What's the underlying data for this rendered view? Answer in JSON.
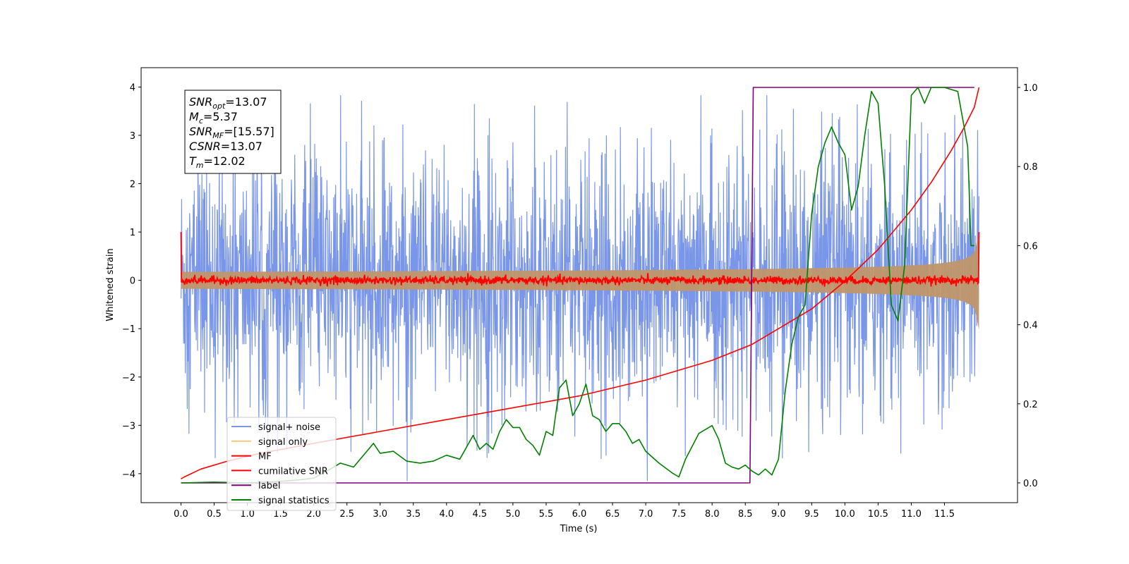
{
  "chart_data": {
    "type": "line",
    "xlabel": "Time (s)",
    "ylabel": "Whitened strain",
    "xlim": [
      -0.6,
      12.6
    ],
    "ylim": [
      -4.6,
      4.4
    ],
    "y2lim": [
      -0.05,
      1.05
    ],
    "x_ticks": [
      "0.0",
      "0.5",
      "1.0",
      "1.5",
      "2.0",
      "2.5",
      "3.0",
      "3.5",
      "4.0",
      "4.5",
      "5.0",
      "5.5",
      "6.0",
      "6.5",
      "7.0",
      "7.5",
      "8.0",
      "8.5",
      "9.0",
      "9.5",
      "10.0",
      "10.5",
      "11.0",
      "11.5"
    ],
    "y_ticks": [
      "4",
      "3",
      "2",
      "1",
      "0",
      "−1",
      "−2",
      "−3",
      "−4"
    ],
    "y2_ticks": [
      "1.0",
      "0.8",
      "0.6",
      "0.4",
      "0.2",
      "0.0"
    ],
    "info_box": [
      {
        "sym": "SNR",
        "sub": "opt",
        "val": "=13.07"
      },
      {
        "sym": "M",
        "sub": "c",
        "val": "=5.37"
      },
      {
        "sym": "SNR",
        "sub": "MF",
        "val": "=[15.57]"
      },
      {
        "sym": "CSNR",
        "sub": "",
        "val": "=13.07"
      },
      {
        "sym": "T",
        "sub": "m",
        "val": "=12.02"
      }
    ],
    "legend": {
      "placement": "lower-left",
      "entries": [
        {
          "label": "signal+ noise",
          "color": "#7a96e8"
        },
        {
          "label": "signal only",
          "color": "#f5c77e"
        },
        {
          "label": "MF",
          "color": "#ff0000"
        },
        {
          "label": "cumilative SNR",
          "color": "#ff0000"
        },
        {
          "label": "label",
          "color": "#800080"
        },
        {
          "label": "signal statistics",
          "color": "#008000"
        }
      ]
    },
    "series": [
      {
        "name": "signal+ noise",
        "axis": "left",
        "color": "#7a96e8",
        "t_start": 0.0,
        "t_end": 12.02,
        "typical_envelope": [
          -2.2,
          2.2
        ],
        "max": 3.83,
        "min": -4.15
      },
      {
        "name": "signal only",
        "axis": "left",
        "color": "#c0966a",
        "t_start": 0.0,
        "t_end": 12.02,
        "amplitude_start": 0.02,
        "amplitude_end": 1.0
      },
      {
        "name": "MF",
        "axis": "left",
        "color": "#ff0000",
        "t_start": 0.0,
        "t_end": 12.02,
        "noise_amplitude": 0.07,
        "edge_values": [
          1.0,
          1.0
        ]
      },
      {
        "name": "cumilative SNR",
        "axis": "right",
        "color": "#ff0000",
        "x": [
          0.0,
          0.05,
          0.3,
          0.7,
          1.2,
          2.0,
          3.0,
          4.0,
          5.0,
          6.0,
          7.0,
          8.0,
          8.6,
          9.0,
          9.5,
          10.0,
          10.5,
          11.0,
          11.3,
          11.6,
          11.8,
          11.95,
          12.02
        ],
        "y": [
          0.01,
          0.015,
          0.035,
          0.055,
          0.075,
          0.1,
          0.13,
          0.16,
          0.19,
          0.22,
          0.26,
          0.31,
          0.35,
          0.39,
          0.44,
          0.51,
          0.59,
          0.69,
          0.76,
          0.84,
          0.9,
          0.95,
          1.0
        ]
      },
      {
        "name": "label",
        "axis": "right",
        "color": "#800080",
        "x": [
          0.0,
          8.57,
          8.62,
          11.95
        ],
        "y": [
          0.0,
          0.0,
          1.0,
          1.0
        ]
      },
      {
        "name": "signal statistics",
        "axis": "right",
        "color": "#008000",
        "x": [
          0.0,
          0.5,
          1.0,
          1.5,
          1.8,
          2.0,
          2.2,
          2.4,
          2.6,
          2.8,
          2.9,
          3.0,
          3.2,
          3.4,
          3.6,
          3.8,
          4.0,
          4.2,
          4.4,
          4.5,
          4.6,
          4.7,
          4.8,
          4.9,
          5.0,
          5.1,
          5.2,
          5.3,
          5.4,
          5.5,
          5.6,
          5.7,
          5.8,
          5.9,
          6.0,
          6.1,
          6.2,
          6.3,
          6.4,
          6.5,
          6.6,
          6.7,
          6.8,
          6.9,
          7.0,
          7.2,
          7.4,
          7.5,
          7.6,
          7.8,
          8.0,
          8.1,
          8.2,
          8.3,
          8.4,
          8.5,
          8.6,
          8.7,
          8.8,
          8.9,
          9.0,
          9.1,
          9.2,
          9.3,
          9.4,
          9.5,
          9.6,
          9.7,
          9.8,
          9.9,
          10.0,
          10.1,
          10.2,
          10.3,
          10.4,
          10.5,
          10.6,
          10.7,
          10.8,
          10.9,
          11.0,
          11.1,
          11.2,
          11.3,
          11.5,
          11.7,
          11.85,
          11.9,
          11.95
        ],
        "y": [
          0.0,
          0.002,
          0.0,
          0.004,
          0.008,
          0.012,
          0.03,
          0.05,
          0.04,
          0.08,
          0.1,
          0.075,
          0.08,
          0.055,
          0.05,
          0.055,
          0.07,
          0.06,
          0.12,
          0.085,
          0.1,
          0.085,
          0.13,
          0.16,
          0.14,
          0.14,
          0.11,
          0.095,
          0.07,
          0.13,
          0.12,
          0.24,
          0.26,
          0.17,
          0.2,
          0.25,
          0.17,
          0.16,
          0.13,
          0.15,
          0.15,
          0.13,
          0.1,
          0.11,
          0.08,
          0.05,
          0.025,
          0.015,
          0.06,
          0.125,
          0.145,
          0.11,
          0.05,
          0.04,
          0.035,
          0.045,
          0.03,
          0.02,
          0.035,
          0.02,
          0.06,
          0.23,
          0.35,
          0.42,
          0.45,
          0.68,
          0.8,
          0.86,
          0.9,
          0.86,
          0.83,
          0.69,
          0.75,
          0.88,
          0.99,
          0.96,
          0.75,
          0.45,
          0.41,
          0.55,
          0.98,
          1.0,
          0.96,
          1.0,
          1.0,
          0.99,
          0.85,
          0.6,
          0.6
        ]
      }
    ]
  }
}
